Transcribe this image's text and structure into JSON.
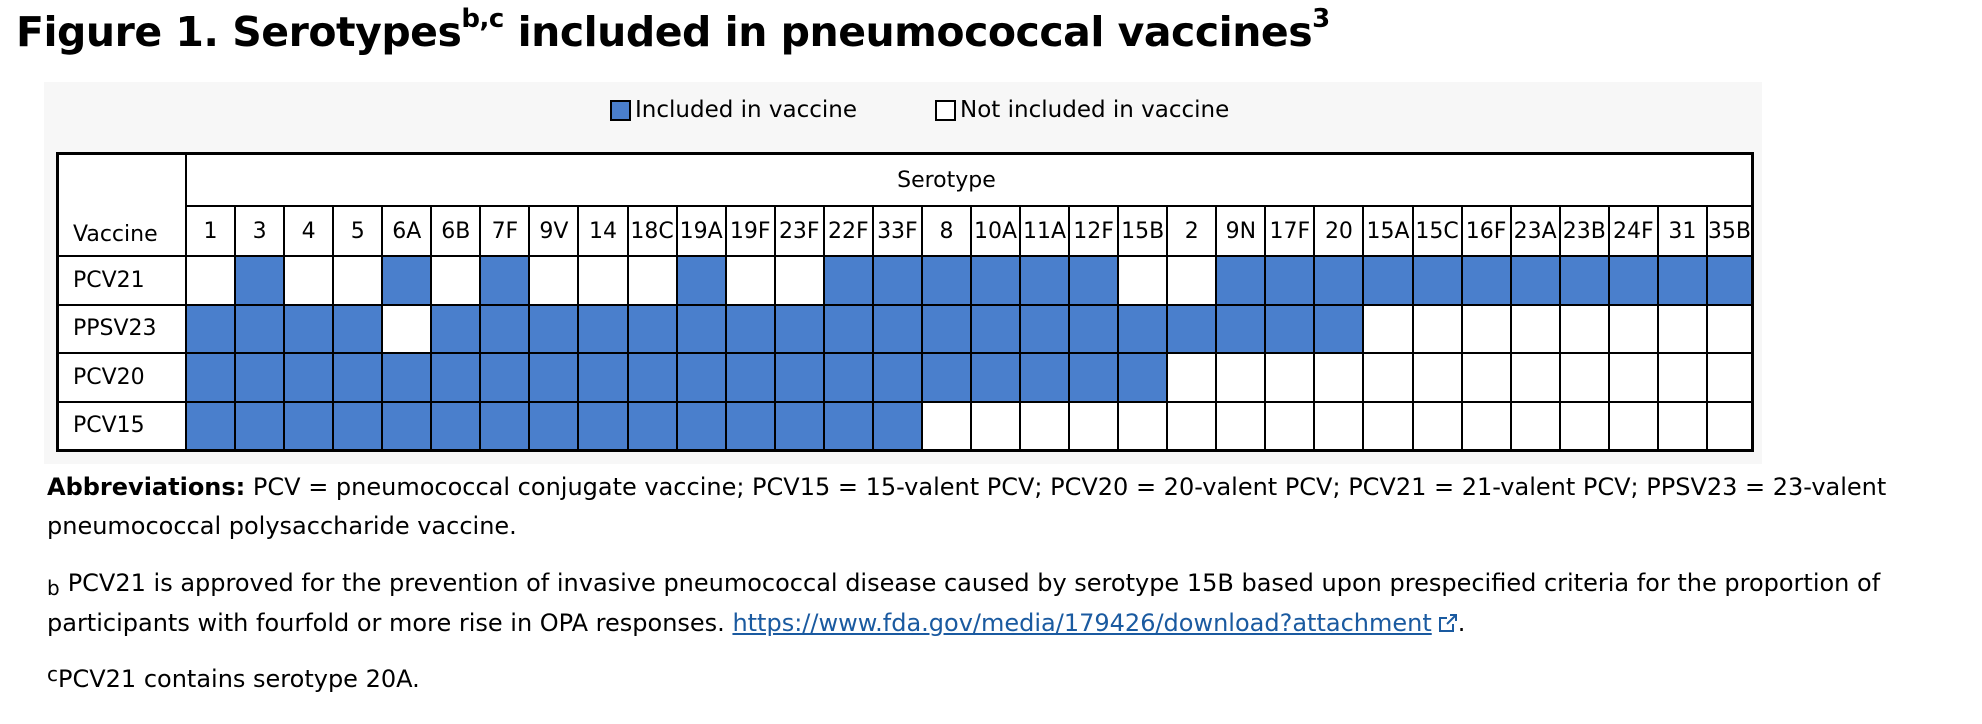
{
  "title": {
    "text": "Figure 1. Serotypes",
    "sup_b_c": "b,c",
    "rest": " included in pneumococcal vaccines",
    "sup_ref": "3"
  },
  "legend": {
    "included_label": "Included in vaccine",
    "not_included_label": "Not included in vaccine",
    "included_color": "#4a7fcc",
    "not_included_color": "#ffffff"
  },
  "chart_data": {
    "type": "table",
    "row_header": "Vaccine",
    "column_group_header": "Serotype",
    "serotypes": [
      "1",
      "3",
      "4",
      "5",
      "6A",
      "6B",
      "7F",
      "9V",
      "14",
      "18C",
      "19A",
      "19F",
      "23F",
      "22F",
      "33F",
      "8",
      "10A",
      "11A",
      "12F",
      "15B",
      "2",
      "9N",
      "17F",
      "20",
      "15A",
      "15C",
      "16F",
      "23A",
      "23B",
      "24F",
      "31",
      "35B"
    ],
    "rows": [
      {
        "vaccine": "PCV21",
        "included": [
          0,
          1,
          0,
          0,
          1,
          0,
          1,
          0,
          0,
          0,
          1,
          0,
          0,
          1,
          1,
          1,
          1,
          1,
          1,
          0,
          0,
          1,
          1,
          1,
          1,
          1,
          1,
          1,
          1,
          1,
          1,
          1
        ]
      },
      {
        "vaccine": "PPSV23",
        "included": [
          1,
          1,
          1,
          1,
          0,
          1,
          1,
          1,
          1,
          1,
          1,
          1,
          1,
          1,
          1,
          1,
          1,
          1,
          1,
          1,
          1,
          1,
          1,
          1,
          0,
          0,
          0,
          0,
          0,
          0,
          0,
          0
        ]
      },
      {
        "vaccine": "PCV20",
        "included": [
          1,
          1,
          1,
          1,
          1,
          1,
          1,
          1,
          1,
          1,
          1,
          1,
          1,
          1,
          1,
          1,
          1,
          1,
          1,
          1,
          0,
          0,
          0,
          0,
          0,
          0,
          0,
          0,
          0,
          0,
          0,
          0
        ]
      },
      {
        "vaccine": "PCV15",
        "included": [
          1,
          1,
          1,
          1,
          1,
          1,
          1,
          1,
          1,
          1,
          1,
          1,
          1,
          1,
          1,
          0,
          0,
          0,
          0,
          0,
          0,
          0,
          0,
          0,
          0,
          0,
          0,
          0,
          0,
          0,
          0,
          0
        ]
      }
    ]
  },
  "notes": {
    "abbr_label": "Abbreviations:",
    "abbr_text": " PCV = pneumococcal conjugate vaccine; PCV15 = 15-valent PCV; PCV20 = 20-valent PCV; PCV21 = 21-valent PCV; PPSV23 = 23-valent pneumococcal polysaccharide vaccine.",
    "b_marker": "b",
    "b_text": "PCV21 is approved for the prevention of invasive pneumococcal disease caused by serotype 15B based upon prespecified criteria for the proportion of participants with fourfold or more rise in OPA responses. ",
    "b_link": "https://www.fda.gov/media/179426/download?attachment",
    "b_end": ".",
    "c_marker": "c",
    "c_text": "PCV21 contains serotype 20A."
  }
}
